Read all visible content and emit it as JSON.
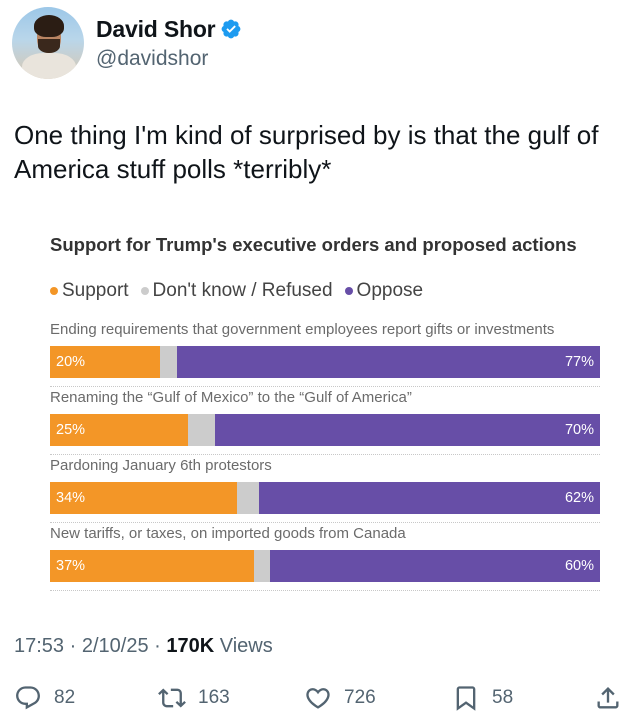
{
  "author": {
    "display_name": "David Shor",
    "handle": "@davidshor"
  },
  "tweet": {
    "text": "One thing I'm kind of surprised by is that the gulf of America stuff polls *terribly*"
  },
  "meta": {
    "time": "17:53",
    "sep1": " · ",
    "date": "2/10/25",
    "sep2": " · ",
    "views_count": "170K",
    "views_label": " Views"
  },
  "actions": {
    "replies": "82",
    "reposts": "163",
    "likes": "726",
    "bookmarks": "58"
  },
  "colors": {
    "support": "#f39627",
    "dont_know": "#cccccc",
    "oppose": "#674ea7",
    "verified": "#1d9bf0"
  },
  "chart_data": {
    "type": "bar",
    "stacked": true,
    "orientation": "horizontal",
    "title": "Support for Trump's executive orders and proposed actions",
    "legend": [
      "Support",
      "Don't know / Refused",
      "Oppose"
    ],
    "categories": [
      "Ending requirements that government employees report gifts or investments",
      "Renaming the “Gulf of Mexico” to the “Gulf of America”",
      "Pardoning January 6th protestors",
      "New tariffs, or taxes, on imported goods from Canada"
    ],
    "series": [
      {
        "name": "Support",
        "values": [
          20,
          25,
          34,
          37
        ],
        "labels": [
          "20%",
          "25%",
          "34%",
          "37%"
        ]
      },
      {
        "name": "Don't know / Refused",
        "values": [
          3,
          5,
          4,
          3
        ]
      },
      {
        "name": "Oppose",
        "values": [
          77,
          70,
          62,
          60
        ],
        "labels": [
          "77%",
          "70%",
          "62%",
          "60%"
        ]
      }
    ],
    "xlim": [
      0,
      100
    ]
  }
}
